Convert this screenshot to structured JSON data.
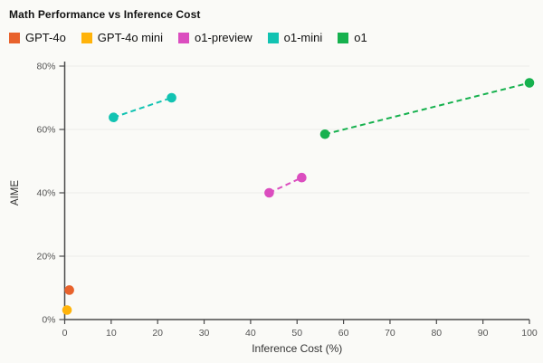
{
  "header": {
    "title": "Math Performance vs Inference Cost"
  },
  "chart_data": {
    "type": "scatter",
    "title": "Math Performance vs Inference Cost",
    "xlabel": "Inference Cost (%)",
    "ylabel": "AIME",
    "xlim": [
      0,
      100
    ],
    "ylim": [
      0,
      80
    ],
    "x_ticks": [
      0,
      10,
      20,
      30,
      40,
      50,
      60,
      70,
      80,
      90,
      100
    ],
    "y_ticks": [
      0,
      20,
      40,
      60,
      80
    ],
    "y_tick_suffix": "%",
    "grid": "horizontal-only",
    "legend_position": "top",
    "line_style": "dashed",
    "colors": {
      "background": "#fafaf7",
      "gridline": "#ececе8",
      "axis": "#4a4a4a",
      "tick_text": "#555555"
    },
    "series": [
      {
        "name": "GPT-4o",
        "color": "#e8622c",
        "points": [
          [
            1,
            9.3
          ]
        ]
      },
      {
        "name": "GPT-4o mini",
        "color": "#ffb30a",
        "points": [
          [
            0.5,
            3
          ]
        ]
      },
      {
        "name": "o1-preview",
        "color": "#db4dbf",
        "points": [
          [
            44,
            40
          ],
          [
            51,
            44.8
          ]
        ]
      },
      {
        "name": "o1-mini",
        "color": "#12c3b2",
        "points": [
          [
            10.5,
            63.8
          ],
          [
            23,
            70
          ]
        ]
      },
      {
        "name": "o1",
        "color": "#16b14e",
        "points": [
          [
            56,
            58.5
          ],
          [
            100,
            74.7
          ]
        ]
      }
    ]
  }
}
